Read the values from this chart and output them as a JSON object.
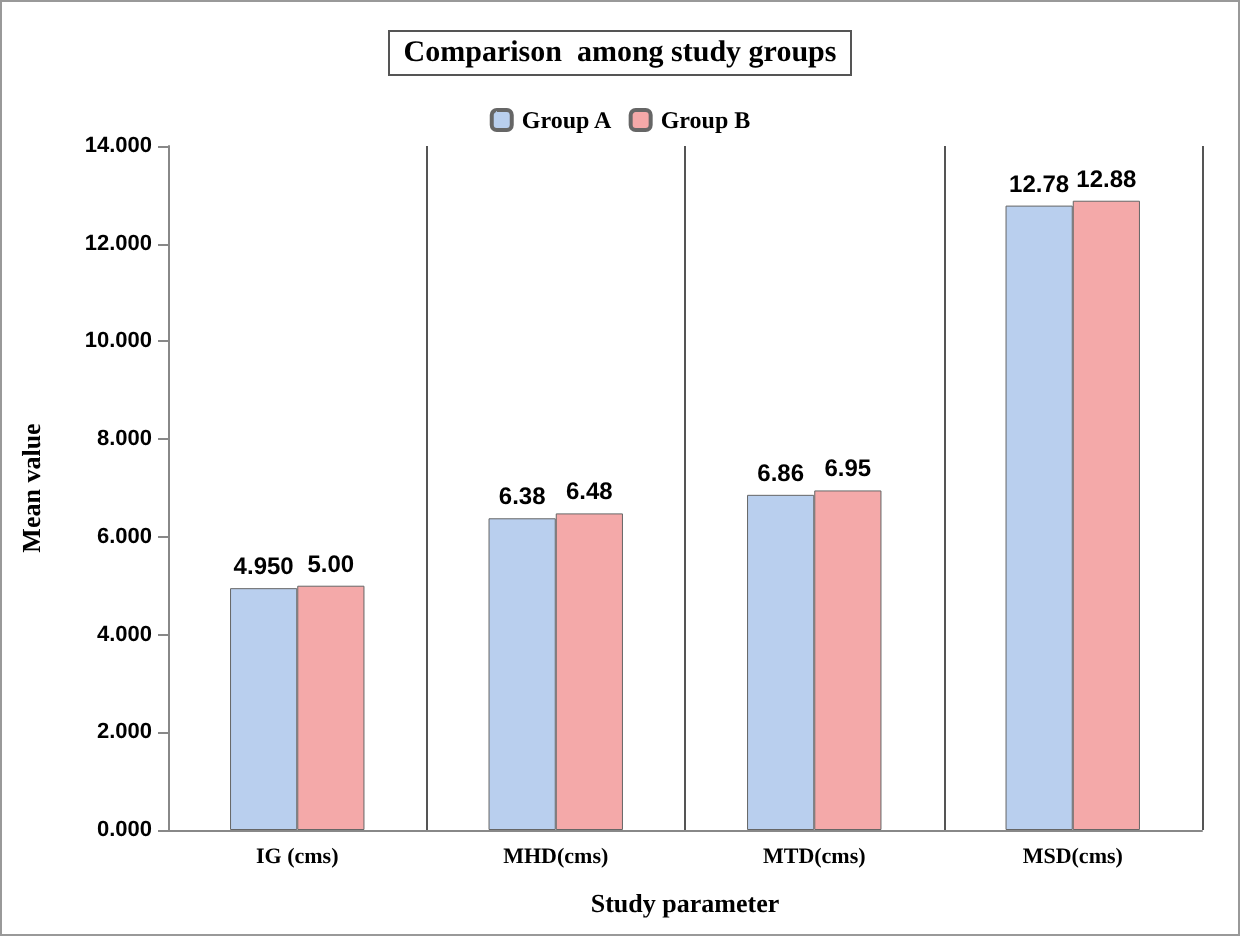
{
  "chart_data": {
    "type": "bar",
    "title": "Comparison  among study groups",
    "xlabel": "Study parameter",
    "ylabel": "Mean value",
    "categories": [
      "IG (cms)",
      "MHD(cms)",
      "MTD(cms)",
      "MSD(cms)"
    ],
    "series": [
      {
        "name": "Group A",
        "color": "#b9cfee",
        "values": [
          4.95,
          6.38,
          6.86,
          12.78
        ],
        "value_labels": [
          "4.950",
          "6.38",
          "6.86",
          "12.78"
        ]
      },
      {
        "name": "Group B",
        "color": "#f4a9a9",
        "values": [
          5.0,
          6.48,
          6.95,
          12.88
        ],
        "value_labels": [
          "5.00",
          "6.48",
          "6.95",
          "12.88"
        ]
      }
    ],
    "ylim": [
      0,
      14
    ],
    "yticks": [
      {
        "value": 0,
        "label": "0.000"
      },
      {
        "value": 2,
        "label": "2.000"
      },
      {
        "value": 4,
        "label": "4.000"
      },
      {
        "value": 6,
        "label": "6.000"
      },
      {
        "value": 8,
        "label": "8.000"
      },
      {
        "value": 10,
        "label": "10.000"
      },
      {
        "value": 12,
        "label": "12.000"
      },
      {
        "value": 14,
        "label": "14.000"
      }
    ],
    "grid": "x",
    "legend": "top"
  }
}
